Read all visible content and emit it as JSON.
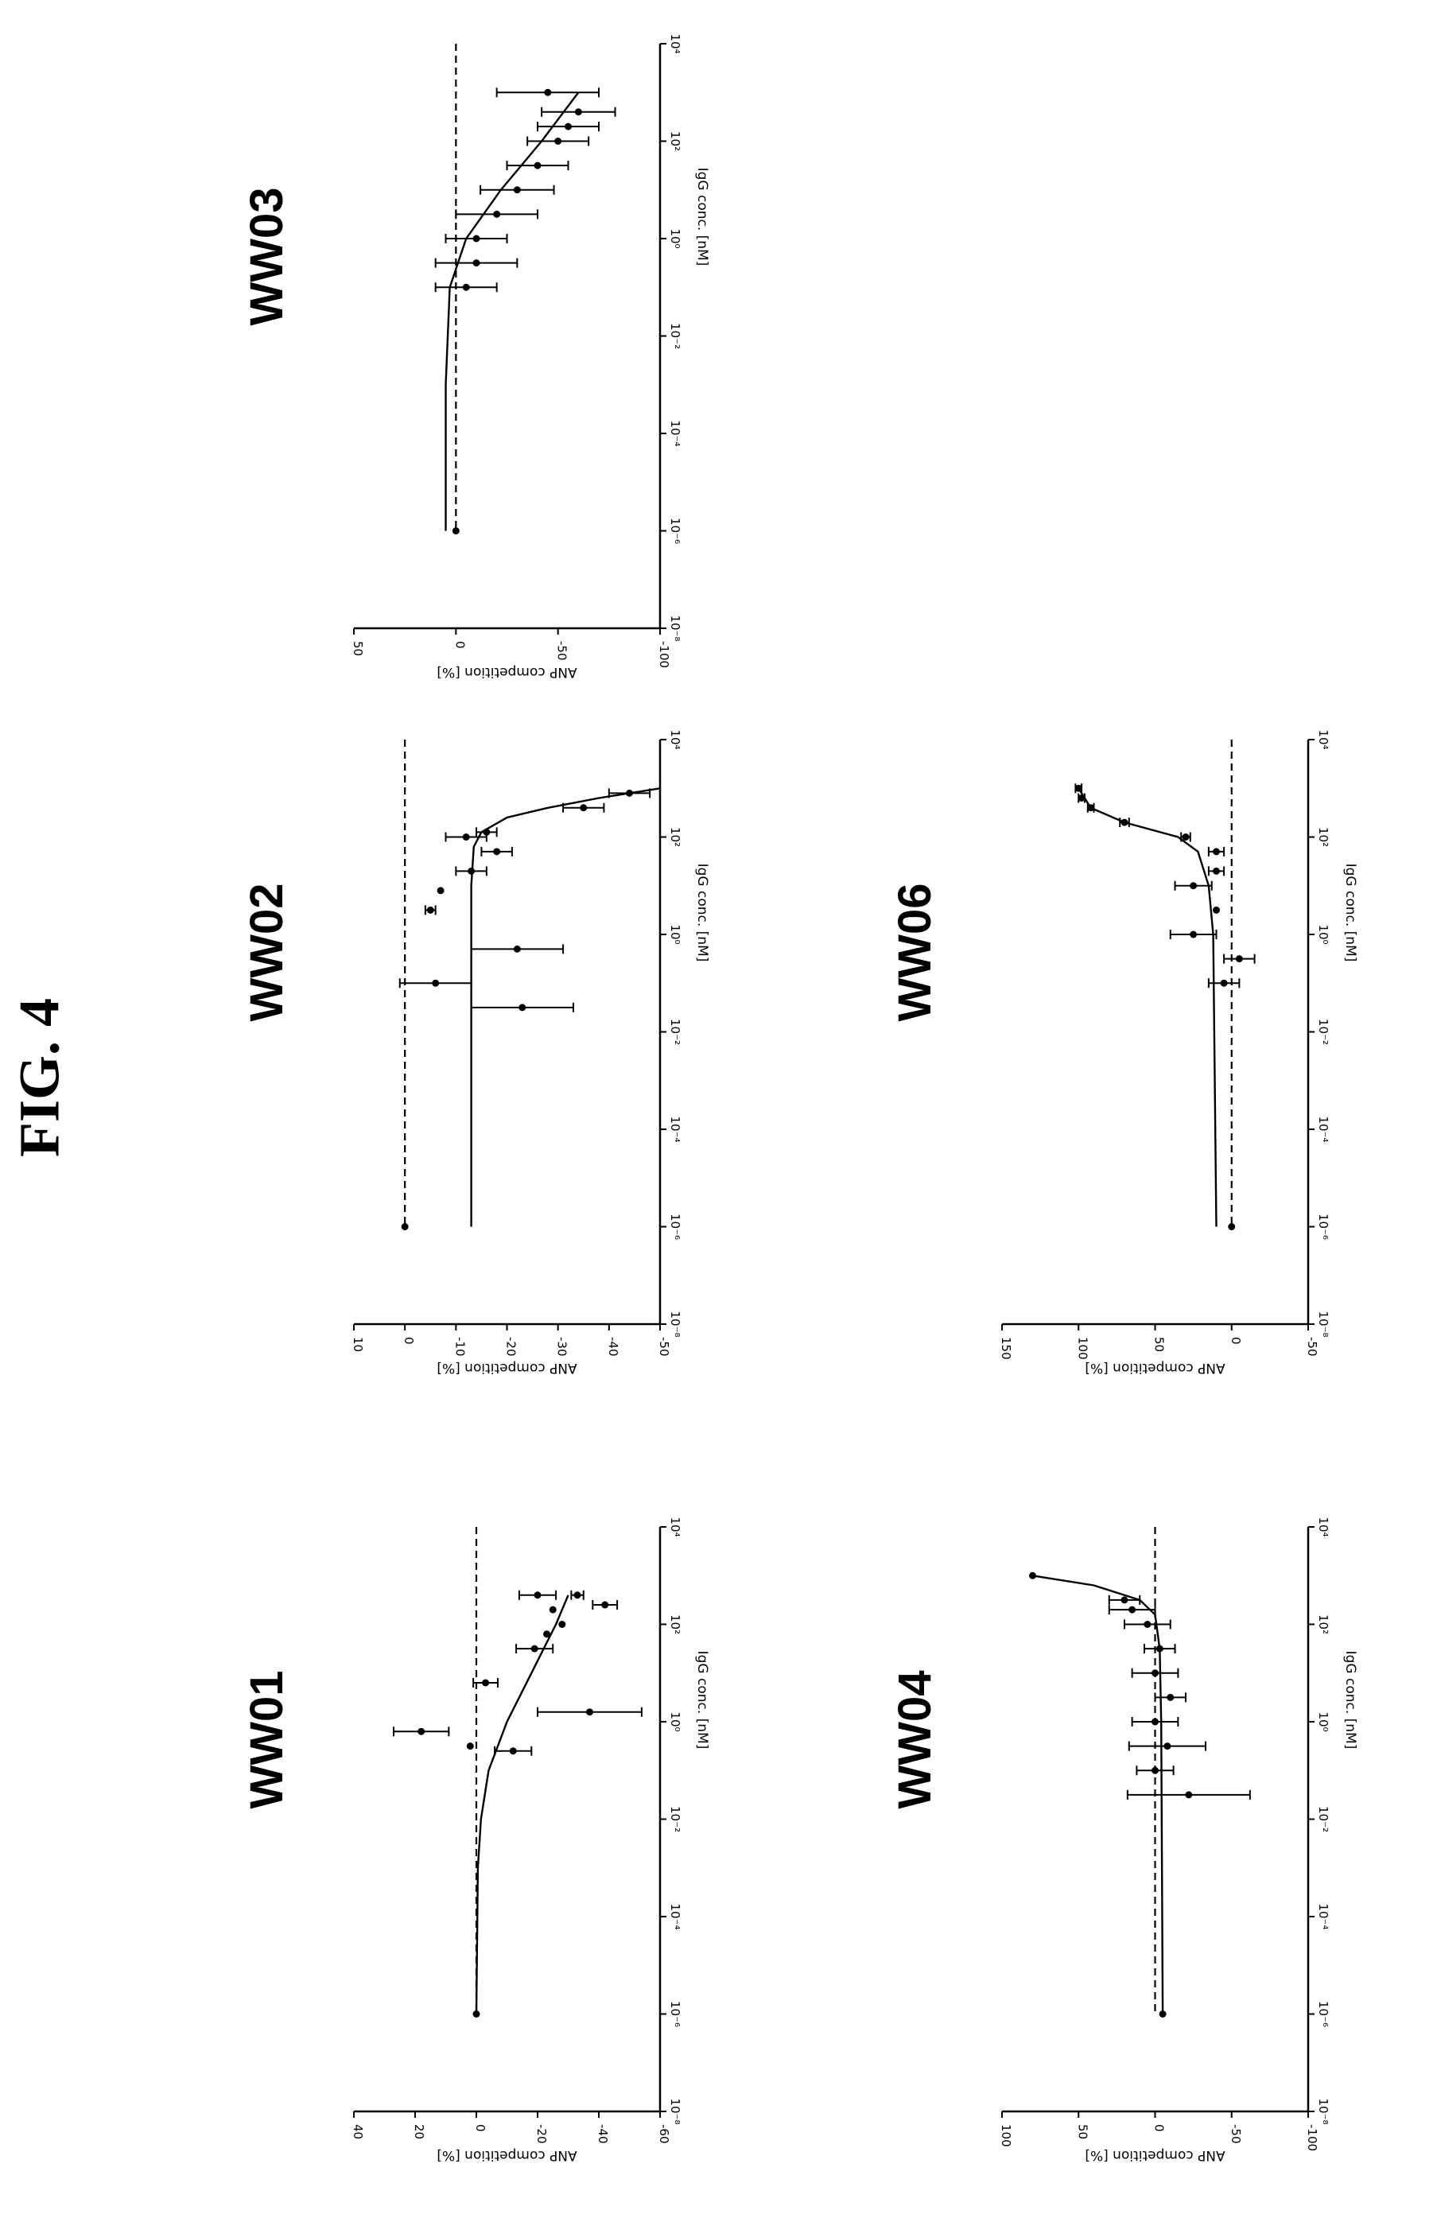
{
  "figure": {
    "title": "FIG. 4"
  },
  "chart_data": [
    {
      "type": "scatter",
      "title": "WW01",
      "xlabel": "IgG conc. [nM]",
      "ylabel": "ANP competition [%]",
      "xscale": "log",
      "xlim_exp": [
        -8,
        4
      ],
      "xticks": [
        "10⁻⁸",
        "10⁻⁶",
        "10⁻⁴",
        "10⁻²",
        "10⁰",
        "10²",
        "10⁴"
      ],
      "ylim": [
        -60,
        40
      ],
      "yticks": [
        40,
        20,
        0,
        -20,
        -40,
        -60
      ],
      "reference_line": 0,
      "points": [
        {
          "x_exp": -6,
          "y": 0,
          "err": 0
        },
        {
          "x_exp": -0.5,
          "y": 2,
          "err": 0
        },
        {
          "x_exp": -0.2,
          "y": 18,
          "err": 9
        },
        {
          "x_exp": -0.6,
          "y": -12,
          "err": 6
        },
        {
          "x_exp": 0.2,
          "y": -37,
          "err": 17
        },
        {
          "x_exp": 0.8,
          "y": -3,
          "err": 4
        },
        {
          "x_exp": 1.5,
          "y": -19,
          "err": 6
        },
        {
          "x_exp": 1.8,
          "y": -23,
          "err": 0
        },
        {
          "x_exp": 2.0,
          "y": -28,
          "err": 0
        },
        {
          "x_exp": 2.3,
          "y": -25,
          "err": 0
        },
        {
          "x_exp": 2.4,
          "y": -42,
          "err": 4
        },
        {
          "x_exp": 2.6,
          "y": -33,
          "err": 2
        },
        {
          "x_exp": 2.6,
          "y": -20,
          "err": 6
        }
      ],
      "fit": [
        [
          -6,
          0
        ],
        [
          -3,
          -0.5
        ],
        [
          -2,
          -1.5
        ],
        [
          -1,
          -4
        ],
        [
          0,
          -10
        ],
        [
          1,
          -18
        ],
        [
          1.5,
          -22
        ],
        [
          2,
          -26
        ],
        [
          2.6,
          -30
        ]
      ]
    },
    {
      "type": "scatter",
      "title": "WW02",
      "xlabel": "IgG conc. [nM]",
      "ylabel": "ANP competition [%]",
      "xscale": "log",
      "xlim_exp": [
        -8,
        4
      ],
      "xticks": [
        "10⁻⁸",
        "10⁻⁶",
        "10⁻⁴",
        "10⁻²",
        "10⁰",
        "10²",
        "10⁴"
      ],
      "ylim": [
        -50,
        10
      ],
      "yticks": [
        10,
        0,
        -10,
        -20,
        -30,
        -40,
        -50
      ],
      "reference_line": 0,
      "points": [
        {
          "x_exp": -6,
          "y": 0,
          "err": 0
        },
        {
          "x_exp": -1.5,
          "y": -23,
          "err": 10
        },
        {
          "x_exp": -1.0,
          "y": -6,
          "err": 7
        },
        {
          "x_exp": -0.3,
          "y": -22,
          "err": 9
        },
        {
          "x_exp": 0.5,
          "y": -5,
          "err": 1
        },
        {
          "x_exp": 0.9,
          "y": -7,
          "err": 0
        },
        {
          "x_exp": 1.3,
          "y": -13,
          "err": 3
        },
        {
          "x_exp": 1.7,
          "y": -18,
          "err": 3
        },
        {
          "x_exp": 2.0,
          "y": -12,
          "err": 4
        },
        {
          "x_exp": 2.1,
          "y": -16,
          "err": 2
        },
        {
          "x_exp": 2.6,
          "y": -35,
          "err": 4
        },
        {
          "x_exp": 2.9,
          "y": -44,
          "err": 4
        }
      ],
      "fit": [
        [
          -6,
          -13
        ],
        [
          1,
          -13
        ],
        [
          1.8,
          -13.5
        ],
        [
          2.1,
          -15
        ],
        [
          2.4,
          -20
        ],
        [
          2.6,
          -28
        ],
        [
          2.8,
          -38
        ],
        [
          3.0,
          -50
        ]
      ]
    },
    {
      "type": "scatter",
      "title": "WW03",
      "xlabel": "IgG conc. [nM]",
      "ylabel": "ANP competition [%]",
      "xscale": "log",
      "xlim_exp": [
        -8,
        4
      ],
      "xticks": [
        "10⁻⁸",
        "10⁻⁶",
        "10⁻⁴",
        "10⁻²",
        "10⁰",
        "10²",
        "10⁴"
      ],
      "ylim": [
        -100,
        50
      ],
      "yticks": [
        50,
        0,
        -50,
        -100
      ],
      "reference_line": 0,
      "points": [
        {
          "x_exp": -6,
          "y": 0,
          "err": 0
        },
        {
          "x_exp": -1.0,
          "y": -5,
          "err": 15
        },
        {
          "x_exp": -0.5,
          "y": -10,
          "err": 20
        },
        {
          "x_exp": 0.0,
          "y": -10,
          "err": 15
        },
        {
          "x_exp": 0.5,
          "y": -20,
          "err": 20
        },
        {
          "x_exp": 1.0,
          "y": -30,
          "err": 18
        },
        {
          "x_exp": 1.5,
          "y": -40,
          "err": 15
        },
        {
          "x_exp": 2.0,
          "y": -50,
          "err": 15
        },
        {
          "x_exp": 2.3,
          "y": -55,
          "err": 15
        },
        {
          "x_exp": 2.6,
          "y": -60,
          "err": 18
        },
        {
          "x_exp": 3.0,
          "y": -45,
          "err": 25
        }
      ],
      "fit": [
        [
          -6,
          5
        ],
        [
          -3,
          5
        ],
        [
          -1,
          3
        ],
        [
          0,
          -5
        ],
        [
          1,
          -22
        ],
        [
          2,
          -42
        ],
        [
          3,
          -60
        ]
      ]
    },
    {
      "type": "scatter",
      "title": "WW04",
      "xlabel": "IgG conc. [nM]",
      "ylabel": "ANP competition [%]",
      "xscale": "log",
      "xlim_exp": [
        -8,
        4
      ],
      "xticks": [
        "10⁻⁸",
        "10⁻⁶",
        "10⁻⁴",
        "10⁻²",
        "10⁰",
        "10²",
        "10⁴"
      ],
      "ylim": [
        -100,
        100
      ],
      "yticks": [
        100,
        50,
        0,
        -50,
        -100
      ],
      "reference_line": 0,
      "points": [
        {
          "x_exp": -6,
          "y": -5,
          "err": 0
        },
        {
          "x_exp": -1.5,
          "y": -22,
          "err": 40
        },
        {
          "x_exp": -1.0,
          "y": 0,
          "err": 12
        },
        {
          "x_exp": -0.5,
          "y": -8,
          "err": 25
        },
        {
          "x_exp": 0.0,
          "y": 0,
          "err": 15
        },
        {
          "x_exp": 0.5,
          "y": -10,
          "err": 10
        },
        {
          "x_exp": 1.0,
          "y": 0,
          "err": 15
        },
        {
          "x_exp": 1.5,
          "y": -3,
          "err": 10
        },
        {
          "x_exp": 2.0,
          "y": 5,
          "err": 15
        },
        {
          "x_exp": 2.3,
          "y": 15,
          "err": 15
        },
        {
          "x_exp": 2.5,
          "y": 20,
          "err": 10
        },
        {
          "x_exp": 3.0,
          "y": 80,
          "err": 0
        }
      ],
      "fit": [
        [
          -6,
          -5
        ],
        [
          0,
          -4
        ],
        [
          1.5,
          -3
        ],
        [
          2.2,
          0
        ],
        [
          2.5,
          10
        ],
        [
          2.8,
          40
        ],
        [
          3.0,
          80
        ]
      ]
    },
    {
      "type": "scatter",
      "title": "WW06",
      "xlabel": "IgG conc. [nM]",
      "ylabel": "ANP competition [%]",
      "xscale": "log",
      "xlim_exp": [
        -8,
        4
      ],
      "xticks": [
        "10⁻⁸",
        "10⁻⁶",
        "10⁻⁴",
        "10⁻²",
        "10⁰",
        "10²",
        "10⁴"
      ],
      "ylim": [
        -50,
        150
      ],
      "yticks": [
        150,
        100,
        50,
        0,
        -50
      ],
      "reference_line": 0,
      "points": [
        {
          "x_exp": -6,
          "y": 0,
          "err": 0
        },
        {
          "x_exp": -1.0,
          "y": 5,
          "err": 10
        },
        {
          "x_exp": -0.5,
          "y": -5,
          "err": 10
        },
        {
          "x_exp": 0.0,
          "y": 25,
          "err": 15
        },
        {
          "x_exp": 0.5,
          "y": 10,
          "err": 0
        },
        {
          "x_exp": 1.0,
          "y": 25,
          "err": 12
        },
        {
          "x_exp": 1.3,
          "y": 10,
          "err": 5
        },
        {
          "x_exp": 1.7,
          "y": 10,
          "err": 5
        },
        {
          "x_exp": 2.0,
          "y": 30,
          "err": 3
        },
        {
          "x_exp": 2.3,
          "y": 70,
          "err": 3
        },
        {
          "x_exp": 2.6,
          "y": 92,
          "err": 2
        },
        {
          "x_exp": 2.8,
          "y": 98,
          "err": 2
        },
        {
          "x_exp": 3.0,
          "y": 100,
          "err": 2
        }
      ],
      "fit": [
        [
          -6,
          10
        ],
        [
          0,
          12
        ],
        [
          1,
          15
        ],
        [
          1.7,
          22
        ],
        [
          2.0,
          35
        ],
        [
          2.3,
          70
        ],
        [
          2.6,
          92
        ],
        [
          3.0,
          100
        ]
      ]
    }
  ]
}
